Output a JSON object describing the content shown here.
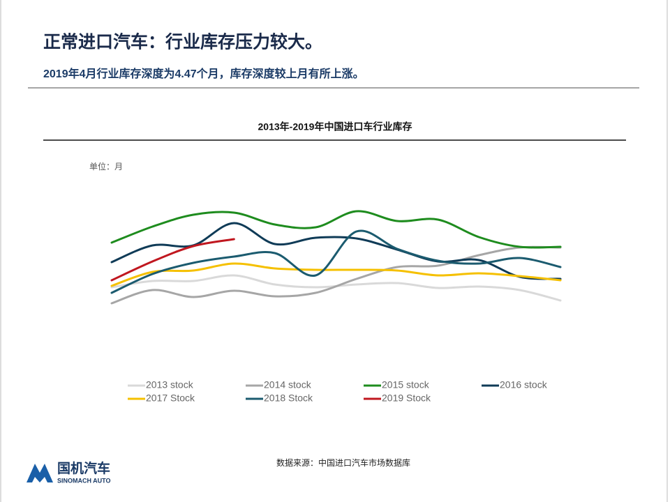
{
  "header": {
    "title": "正常进口汽车：行业库存压力较大。",
    "subtitle": "2019年4月行业库存深度为4.47个月，库存深度较上月有所上涨。"
  },
  "chart_data": {
    "type": "line",
    "title": "2013年-2019年中国进口车行业库存",
    "unit_label": "单位：月",
    "series": [
      {
        "name": "2013 stock",
        "color": "#d9d9d9",
        "values": [
          3.09,
          3.27,
          3.27,
          3.43,
          3.17,
          3.09,
          3.17,
          3.21,
          3.07,
          3.11,
          3.01,
          2.71
        ]
      },
      {
        "name": "2014 stock",
        "color": "#a6a6a6",
        "values": [
          2.63,
          3.01,
          2.81,
          2.99,
          2.83,
          2.93,
          3.33,
          3.67,
          3.71,
          4.01,
          4.23,
          4.23
        ]
      },
      {
        "name": "2015 stock",
        "color": "#1e8c1e",
        "values": [
          4.37,
          4.83,
          5.17,
          5.23,
          4.89,
          4.81,
          5.27,
          4.99,
          5.03,
          4.53,
          4.25,
          4.25
        ]
      },
      {
        "name": "2016 stock",
        "color": "#0f3b57",
        "values": [
          3.81,
          4.29,
          4.29,
          4.93,
          4.33,
          4.51,
          4.49,
          4.17,
          3.83,
          3.87,
          3.39,
          3.33
        ]
      },
      {
        "name": "2017 Stock",
        "color": "#f5c000",
        "values": [
          3.13,
          3.53,
          3.57,
          3.77,
          3.63,
          3.59,
          3.59,
          3.57,
          3.43,
          3.49,
          3.41,
          3.29
        ]
      },
      {
        "name": "2018 Stock",
        "color": "#1b5b6f",
        "values": [
          2.93,
          3.47,
          3.79,
          3.97,
          4.07,
          3.43,
          4.69,
          4.19,
          3.85,
          3.77,
          3.93,
          3.67
        ]
      },
      {
        "name": "2019 Stock",
        "color": "#c0171f",
        "values": [
          3.29,
          3.83,
          4.27,
          4.47,
          null,
          null,
          null,
          null,
          null,
          null,
          null,
          null
        ]
      }
    ],
    "source": "数据来源：中国进口汽车市场数据库"
  },
  "logo": {
    "name": "国机汽车",
    "sub": "SINOMACH AUTO"
  }
}
